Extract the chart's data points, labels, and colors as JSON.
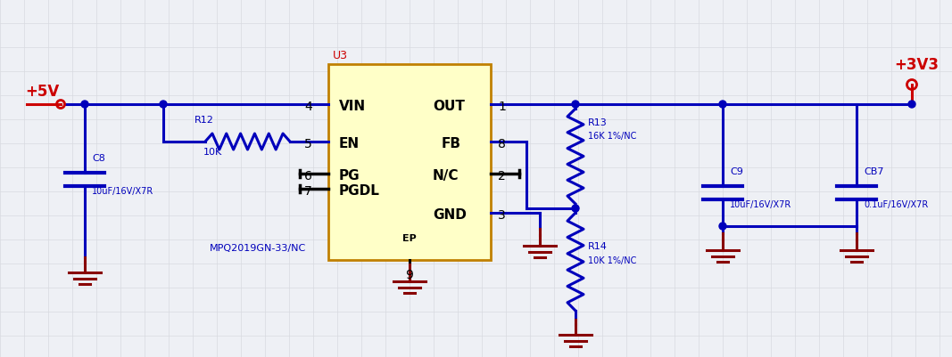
{
  "bg_color": "#eef0f5",
  "grid_color": "#d8dae0",
  "wire_color": "#0000bb",
  "wire_color_dark": "#000044",
  "black": "#000000",
  "red_color": "#cc0000",
  "dark_red": "#880000",
  "ic_fill": "#ffffc8",
  "ic_border": "#c08000",
  "u3_label": "U3",
  "ic_name": "MPQ2019GN-33/NC",
  "power_label": "+5V",
  "power_label2": "+3V3",
  "r12_label": "R12",
  "r12_val": "10K",
  "r13_label": "R13",
  "r13_val": "16K 1%/NC",
  "r14_label": "R14",
  "r14_val": "10K 1%/NC",
  "c8_label": "C8",
  "c8_val": "10uF/16V/X7R",
  "c9_label": "C9",
  "c9_val": "10uF/16V/X7R",
  "cb7_label": "CB7",
  "cb7_val": "0.1uF/16V/X7R",
  "figsize": [
    10.67,
    4.02
  ],
  "dpi": 100
}
